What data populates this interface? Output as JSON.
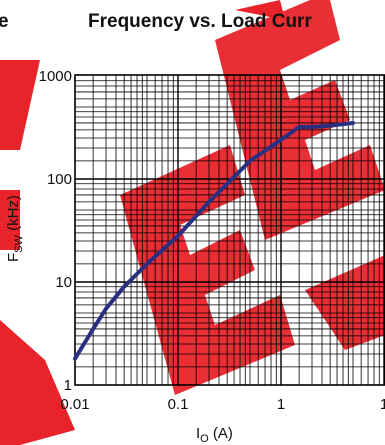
{
  "page": {
    "title_left_fragment": "e",
    "watermark": "REFER"
  },
  "chart_data": {
    "type": "line",
    "title": "Frequency vs. Load Curr",
    "xlabel": {
      "main": "I",
      "sub": "O",
      "suffix": " (A)"
    },
    "ylabel": {
      "main": "F",
      "sub": "SW",
      "suffix": " (kHz)"
    },
    "xscale": "log",
    "yscale": "log",
    "xlim": [
      0.01,
      10
    ],
    "ylim": [
      1,
      1000
    ],
    "x_tick_labels": [
      "0.01",
      "0.1",
      "1",
      "1"
    ],
    "y_tick_labels": [
      "1",
      "10",
      "100",
      "1000"
    ],
    "grid": true,
    "series": [
      {
        "color": "#2b2f80",
        "x": [
          0.01,
          0.015,
          0.02,
          0.03,
          0.05,
          0.1,
          0.2,
          0.5,
          1.0,
          1.5,
          2.0,
          3.0,
          5.0
        ],
        "y": [
          1.8,
          3.5,
          5.5,
          9,
          15,
          28,
          60,
          150,
          240,
          320,
          320,
          330,
          350
        ]
      }
    ],
    "colors": {
      "grid": "#000000",
      "line": "#2b2f80",
      "watermark": "#e8232a"
    }
  }
}
